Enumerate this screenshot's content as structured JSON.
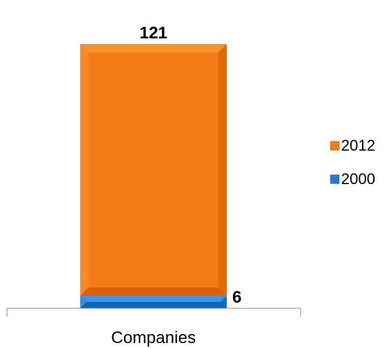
{
  "chart_data": {
    "type": "bar",
    "stacked": true,
    "categories": [
      "Companies"
    ],
    "series": [
      {
        "name": "2000",
        "values": [
          6
        ],
        "color": "#1F7FD6"
      },
      {
        "name": "2012",
        "values": [
          121
        ],
        "color": "#F47B16"
      }
    ],
    "legend_position": "right",
    "legend_order": [
      "2012",
      "2000"
    ],
    "grid": false,
    "title": "",
    "xlabel": "",
    "ylabel": ""
  }
}
